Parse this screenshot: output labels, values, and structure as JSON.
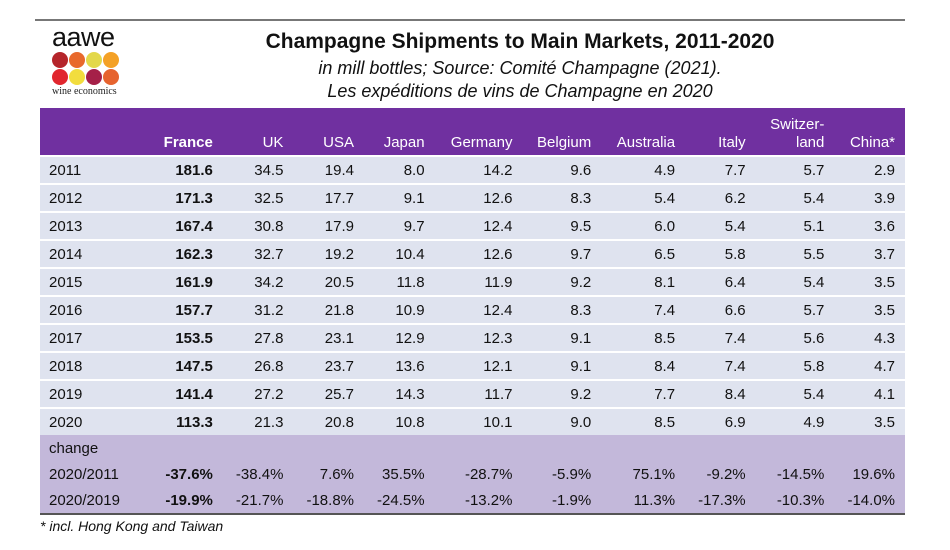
{
  "logo": {
    "word": "aawe",
    "sub": "wine economics",
    "dots": [
      "#b5252b",
      "#e8692c",
      "#e3d84a",
      "#f4a126",
      "#e1262e",
      "#f2dd3e",
      "#a52048",
      "#e6632e"
    ]
  },
  "title": "Champagne Shipments to Main Markets, 2011-2020",
  "subtitle1": "in mill bottles; Source: Comité Champagne (2021).",
  "subtitle2": "Les expéditions de vins de Champagne en 2020",
  "footnote": "* incl. Hong Kong and Taiwan",
  "colors": {
    "header": "#7030a0",
    "rows": "#dfe3ef",
    "change": "#c3b8da"
  },
  "chart_data": {
    "type": "table",
    "columns": [
      "",
      "France",
      "UK",
      "USA",
      "Japan",
      "Germany",
      "Belgium",
      "Australia",
      "Italy",
      "Switzer-\nland",
      "China*"
    ],
    "rows": [
      [
        "2011",
        "181.6",
        "34.5",
        "19.4",
        "8.0",
        "14.2",
        "9.6",
        "4.9",
        "7.7",
        "5.7",
        "2.9"
      ],
      [
        "2012",
        "171.3",
        "32.5",
        "17.7",
        "9.1",
        "12.6",
        "8.3",
        "5.4",
        "6.2",
        "5.4",
        "3.9"
      ],
      [
        "2013",
        "167.4",
        "30.8",
        "17.9",
        "9.7",
        "12.4",
        "9.5",
        "6.0",
        "5.4",
        "5.1",
        "3.6"
      ],
      [
        "2014",
        "162.3",
        "32.7",
        "19.2",
        "10.4",
        "12.6",
        "9.7",
        "6.5",
        "5.8",
        "5.5",
        "3.7"
      ],
      [
        "2015",
        "161.9",
        "34.2",
        "20.5",
        "11.8",
        "11.9",
        "9.2",
        "8.1",
        "6.4",
        "5.4",
        "3.5"
      ],
      [
        "2016",
        "157.7",
        "31.2",
        "21.8",
        "10.9",
        "12.4",
        "8.3",
        "7.4",
        "6.6",
        "5.7",
        "3.5"
      ],
      [
        "2017",
        "153.5",
        "27.8",
        "23.1",
        "12.9",
        "12.3",
        "9.1",
        "8.5",
        "7.4",
        "5.6",
        "4.3"
      ],
      [
        "2018",
        "147.5",
        "26.8",
        "23.7",
        "13.6",
        "12.1",
        "9.1",
        "8.4",
        "7.4",
        "5.8",
        "4.7"
      ],
      [
        "2019",
        "141.4",
        "27.2",
        "25.7",
        "14.3",
        "11.7",
        "9.2",
        "7.7",
        "8.4",
        "5.4",
        "4.1"
      ],
      [
        "2020",
        "113.3",
        "21.3",
        "20.8",
        "10.8",
        "10.1",
        "9.0",
        "8.5",
        "6.9",
        "4.9",
        "3.5"
      ]
    ],
    "change_label": "change",
    "change_rows": [
      [
        "2020/2011",
        "-37.6%",
        "-38.4%",
        "7.6%",
        "35.5%",
        "-28.7%",
        "-5.9%",
        "75.1%",
        "-9.2%",
        "-14.5%",
        "19.6%"
      ],
      [
        "2020/2019",
        "-19.9%",
        "-21.7%",
        "-18.8%",
        "-24.5%",
        "-13.2%",
        "-1.9%",
        "11.3%",
        "-17.3%",
        "-10.3%",
        "-14.0%"
      ]
    ]
  }
}
